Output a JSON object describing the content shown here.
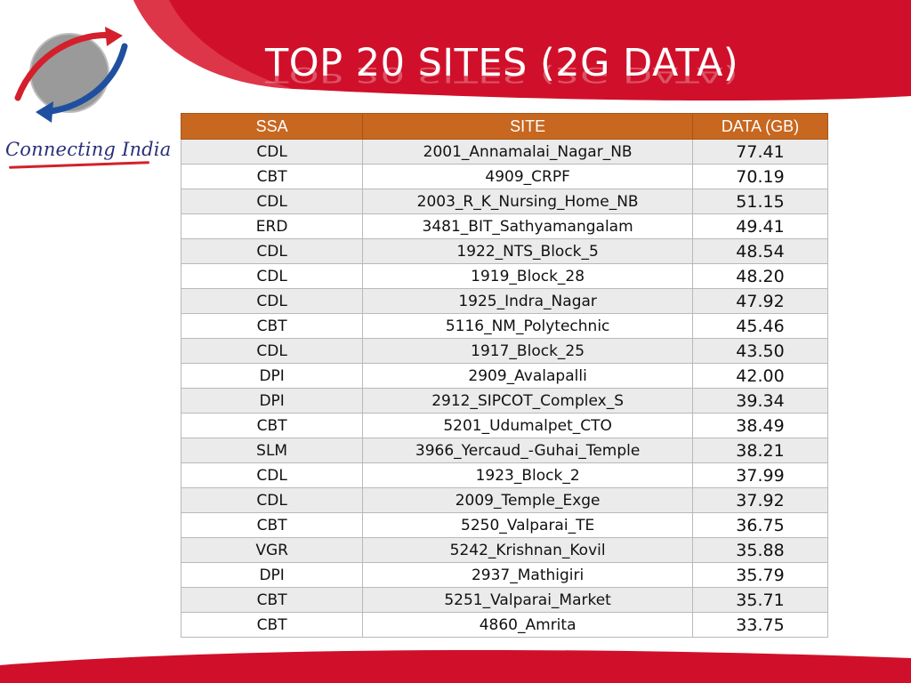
{
  "slide": {
    "title": "TOP  20  SITES (2G DATA)",
    "brand_text": "Connecting India",
    "colors": {
      "accent_red": "#d0102a",
      "header_orange": "#c8671f",
      "logo_blue": "#2a2f7a"
    }
  },
  "table": {
    "headers": {
      "ssa": "SSA",
      "site": "SITE",
      "data": "DATA (GB)"
    },
    "rows": [
      {
        "ssa": "CDL",
        "site": "2001_Annamalai_Nagar_NB",
        "data": "77.41"
      },
      {
        "ssa": "CBT",
        "site": "4909_CRPF",
        "data": "70.19"
      },
      {
        "ssa": "CDL",
        "site": "2003_R_K_Nursing_Home_NB",
        "data": "51.15"
      },
      {
        "ssa": "ERD",
        "site": "3481_BIT_Sathyamangalam",
        "data": "49.41"
      },
      {
        "ssa": "CDL",
        "site": "1922_NTS_Block_5",
        "data": "48.54"
      },
      {
        "ssa": "CDL",
        "site": "1919_Block_28",
        "data": "48.20"
      },
      {
        "ssa": "CDL",
        "site": "1925_Indra_Nagar",
        "data": "47.92"
      },
      {
        "ssa": "CBT",
        "site": "5116_NM_Polytechnic",
        "data": "45.46"
      },
      {
        "ssa": "CDL",
        "site": "1917_Block_25",
        "data": "43.50"
      },
      {
        "ssa": "DPI",
        "site": "2909_Avalapalli",
        "data": "42.00"
      },
      {
        "ssa": "DPI",
        "site": "2912_SIPCOT_Complex_S",
        "data": "39.34"
      },
      {
        "ssa": "CBT",
        "site": "5201_Udumalpet_CTO",
        "data": "38.49"
      },
      {
        "ssa": "SLM",
        "site": "3966_Yercaud_-Guhai_Temple",
        "data": "38.21"
      },
      {
        "ssa": "CDL",
        "site": "1923_Block_2",
        "data": "37.99"
      },
      {
        "ssa": "CDL",
        "site": "2009_Temple_Exge",
        "data": "37.92"
      },
      {
        "ssa": "CBT",
        "site": "5250_Valparai_TE",
        "data": "36.75"
      },
      {
        "ssa": "VGR",
        "site": "5242_Krishnan_Kovil",
        "data": "35.88"
      },
      {
        "ssa": "DPI",
        "site": "2937_Mathigiri",
        "data": "35.79"
      },
      {
        "ssa": "CBT",
        "site": "5251_Valparai_Market",
        "data": "35.71"
      },
      {
        "ssa": "CBT",
        "site": "4860_Amrita",
        "data": "33.75"
      }
    ]
  }
}
